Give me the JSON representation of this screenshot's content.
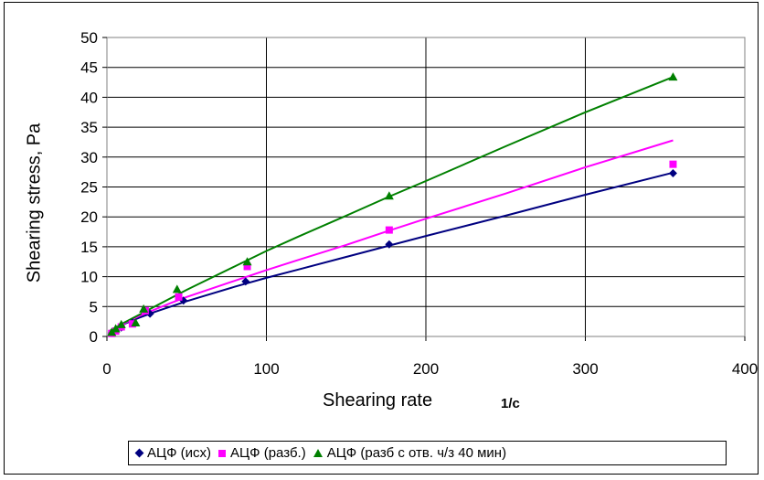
{
  "chart_data": {
    "type": "scatter",
    "xlabel": "Shearing rate",
    "xunit": "1/c",
    "ylabel": "Shearing stress, Pa",
    "xlim": [
      0,
      400
    ],
    "ylim": [
      0,
      50
    ],
    "xticks": [
      "0",
      "100",
      "200",
      "300",
      "400"
    ],
    "yticks": [
      "0",
      "5",
      "10",
      "15",
      "20",
      "25",
      "30",
      "35",
      "40",
      "45",
      "50"
    ],
    "grid": true,
    "legend_position": "bottom",
    "series": [
      {
        "name": "АЦФ (исх)",
        "color": "#000080",
        "marker": "diamond",
        "x": [
          3,
          5.5,
          9,
          16,
          27,
          48,
          87,
          177,
          355
        ],
        "y": [
          0.6,
          1.0,
          1.5,
          2.3,
          3.8,
          6.0,
          9.2,
          15.4,
          27.3
        ],
        "trend": [
          [
            1.5,
            0.8
          ],
          [
            10,
            2.0
          ],
          [
            20,
            3.1
          ],
          [
            30,
            4.1
          ],
          [
            40,
            5.0
          ],
          [
            50,
            5.9
          ],
          [
            60,
            6.7
          ],
          [
            80,
            8.3
          ],
          [
            100,
            9.8
          ],
          [
            120,
            11.2
          ],
          [
            150,
            13.3
          ],
          [
            177,
            15.2
          ],
          [
            200,
            16.8
          ],
          [
            250,
            20.2
          ],
          [
            300,
            23.7
          ],
          [
            355,
            27.4
          ]
        ]
      },
      {
        "name": "АЦФ (разб.)",
        "color": "#FF00FF",
        "marker": "square",
        "x": [
          3,
          5.5,
          9,
          16,
          24,
          45,
          88,
          177,
          355
        ],
        "y": [
          0.5,
          0.9,
          1.6,
          2.1,
          4.3,
          6.6,
          11.7,
          17.8,
          28.8
        ],
        "trend": [
          [
            1.5,
            0.8
          ],
          [
            10,
            2.1
          ],
          [
            20,
            3.4
          ],
          [
            30,
            4.5
          ],
          [
            40,
            5.6
          ],
          [
            50,
            6.6
          ],
          [
            60,
            7.5
          ],
          [
            80,
            9.3
          ],
          [
            100,
            11.1
          ],
          [
            120,
            12.8
          ],
          [
            150,
            15.3
          ],
          [
            177,
            17.7
          ],
          [
            200,
            19.7
          ],
          [
            250,
            23.9
          ],
          [
            300,
            28.3
          ],
          [
            355,
            32.8
          ]
        ]
      },
      {
        "name": "АЦФ (разб с отв. ч/з 40 мин)",
        "color": "#008000",
        "marker": "triangle",
        "x": [
          3,
          5.5,
          9,
          18,
          23,
          44,
          88,
          177,
          355
        ],
        "y": [
          0.7,
          1.3,
          2.0,
          2.3,
          4.6,
          7.9,
          12.5,
          23.5,
          43.4
        ],
        "trend": [
          [
            1.5,
            0.9
          ],
          [
            10,
            2.2
          ],
          [
            20,
            3.6
          ],
          [
            30,
            5.0
          ],
          [
            40,
            6.4
          ],
          [
            50,
            7.8
          ],
          [
            60,
            9.1
          ],
          [
            80,
            11.7
          ],
          [
            100,
            14.3
          ],
          [
            120,
            16.7
          ],
          [
            150,
            20.2
          ],
          [
            177,
            23.4
          ],
          [
            200,
            26.0
          ],
          [
            250,
            31.8
          ],
          [
            300,
            37.5
          ],
          [
            355,
            43.4
          ]
        ]
      }
    ]
  }
}
